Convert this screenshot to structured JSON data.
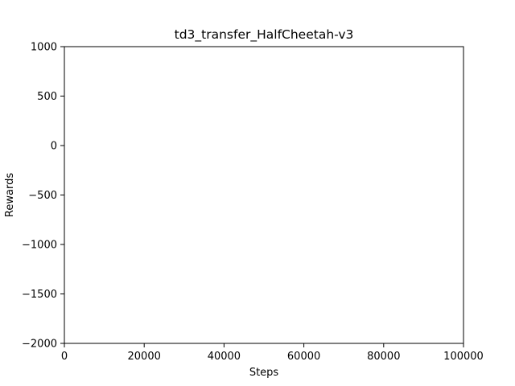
{
  "chart_data": {
    "type": "line",
    "title": "td3_transfer_HalfCheetah-v3",
    "xlabel": "Steps",
    "ylabel": "Rewards",
    "xlim": [
      0,
      100000
    ],
    "ylim": [
      -2000,
      1000
    ],
    "xticks": [
      0,
      20000,
      40000,
      60000,
      80000,
      100000
    ],
    "yticks": [
      1000,
      500,
      0,
      -500,
      -1000,
      -1500,
      -2000
    ],
    "xtick_labels": [
      "0",
      "20000",
      "40000",
      "60000",
      "80000",
      "100000"
    ],
    "ytick_labels": [
      "1000",
      "500",
      "0",
      "−500",
      "−1000",
      "−1500",
      "−2000"
    ],
    "series": [],
    "grid": false
  }
}
